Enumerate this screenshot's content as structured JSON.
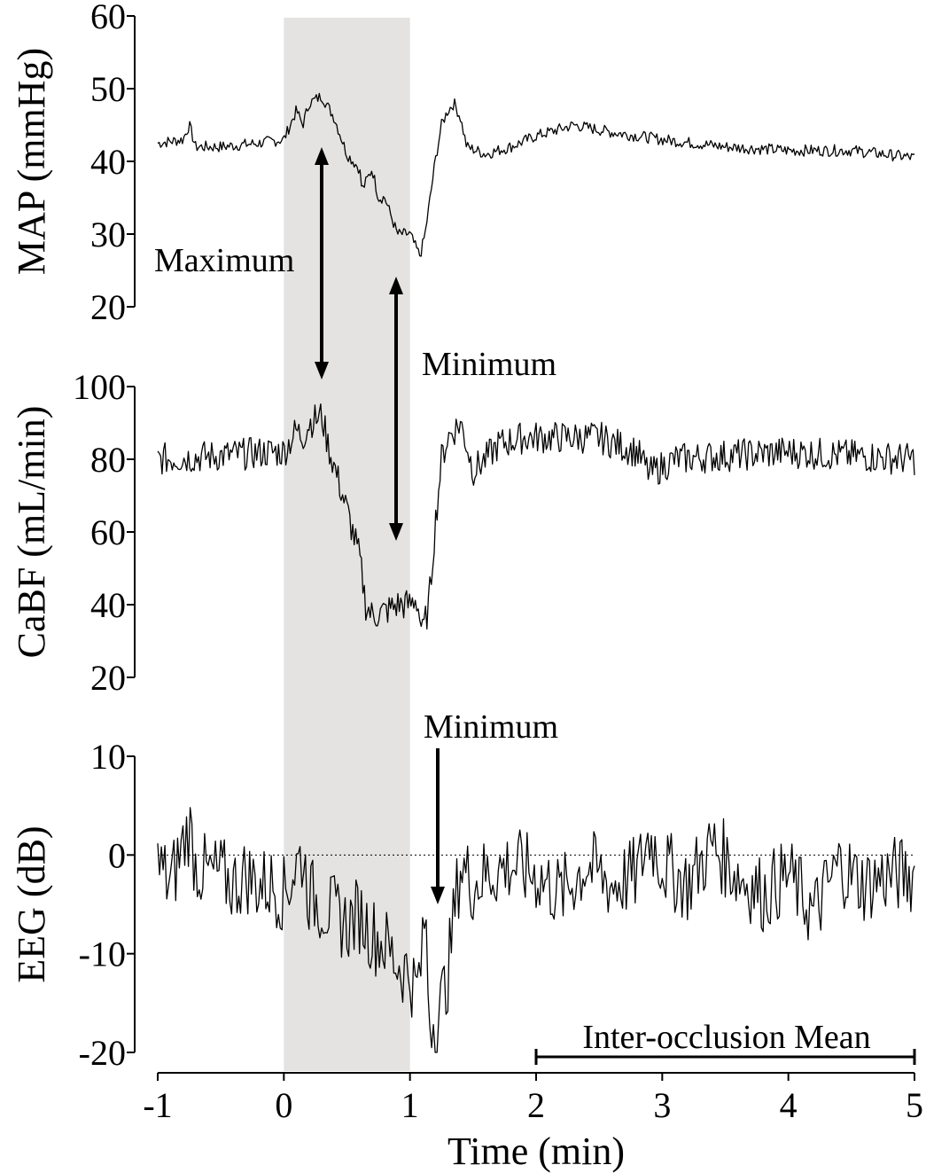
{
  "chart_data": {
    "type": "line",
    "shaded_interval": {
      "x": [
        0,
        1
      ],
      "color": "#e4e3e1"
    },
    "xlabel": "Time (min)",
    "xticks": [
      "-1",
      "0",
      "1",
      "2",
      "3",
      "4",
      "5"
    ],
    "xlim": [
      -1,
      5
    ],
    "panels": [
      {
        "ylabel": "MAP (mmHg)",
        "ylim": [
          20,
          60
        ],
        "yticks": [
          "20",
          "30",
          "40",
          "50",
          "60"
        ],
        "x": [
          -1,
          -0.8,
          -0.75,
          -0.7,
          -0.5,
          -0.2,
          0,
          0.1,
          0.15,
          0.2,
          0.3,
          0.4,
          0.5,
          0.6,
          0.62,
          0.7,
          0.75,
          0.8,
          0.9,
          1,
          1.05,
          1.08,
          1.12,
          1.2,
          1.25,
          1.3,
          1.35,
          1.4,
          1.45,
          1.6,
          1.8,
          2,
          2.3,
          2.6,
          3,
          3.5,
          4,
          4.5,
          5
        ],
        "y": [
          42.5,
          43,
          45,
          42,
          42,
          42.5,
          43,
          47,
          45,
          48,
          49,
          46,
          41,
          39,
          36,
          39,
          35,
          35,
          30,
          30,
          28,
          27,
          30,
          40,
          45,
          47,
          48,
          46,
          42,
          41,
          42,
          43.5,
          45,
          44,
          43,
          42,
          41.5,
          41.5,
          40.5
        ]
      },
      {
        "ylabel": "CaBF (mL/min)",
        "ylim": [
          20,
          100
        ],
        "yticks": [
          "20",
          "40",
          "60",
          "80",
          "100"
        ],
        "x": [
          -1,
          -0.5,
          -0.1,
          0,
          0.1,
          0.15,
          0.2,
          0.3,
          0.35,
          0.4,
          0.5,
          0.6,
          0.65,
          0.7,
          0.8,
          0.9,
          1,
          1.05,
          1.1,
          1.15,
          1.2,
          1.25,
          1.3,
          1.35,
          1.4,
          1.45,
          1.5,
          1.6,
          1.7,
          1.9,
          2.2,
          2.5,
          2.8,
          2.9,
          3.1,
          3.5,
          4,
          4.5,
          5
        ],
        "y": [
          80,
          81,
          82,
          82,
          88,
          86,
          90,
          92,
          84,
          78,
          66,
          53,
          40,
          37,
          38,
          40,
          40,
          42,
          32,
          40,
          62,
          80,
          86,
          88,
          90,
          84,
          77,
          80,
          84,
          86,
          86,
          86,
          82,
          76,
          80,
          81,
          82,
          81,
          80
        ]
      },
      {
        "ylabel": "EEG (dB)",
        "ylim": [
          -20,
          10
        ],
        "yticks": [
          "-20",
          "-10",
          "0",
          "10"
        ],
        "zero_line": true,
        "x": [
          -1,
          -0.9,
          -0.8,
          -0.75,
          -0.7,
          -0.6,
          -0.5,
          -0.4,
          -0.3,
          -0.2,
          -0.1,
          0,
          0.1,
          0.15,
          0.2,
          0.3,
          0.4,
          0.5,
          0.6,
          0.7,
          0.8,
          0.9,
          1,
          1.05,
          1.1,
          1.12,
          1.15,
          1.2,
          1.25,
          1.3,
          1.35,
          1.4,
          1.5,
          1.6,
          1.8,
          2,
          2.2,
          2.4,
          2.6,
          2.8,
          2.9,
          3,
          3.2,
          3.4,
          3.6,
          3.8,
          4,
          4.2,
          4.4,
          4.6,
          4.8,
          5
        ],
        "y": [
          -1,
          -3,
          1,
          3,
          -1,
          -2,
          -2,
          -3,
          -2,
          -3,
          -3,
          -4,
          -1,
          0,
          -4,
          -5,
          -6,
          -7,
          -6,
          -8,
          -9,
          -11,
          -12,
          -14,
          -10,
          -5,
          -16,
          -17,
          -15,
          -12,
          -6,
          -1,
          -3,
          -2,
          -1,
          -2,
          -4,
          -1,
          -3,
          -2,
          2,
          -1,
          -3,
          1,
          -2,
          -4,
          -2,
          -6,
          -1,
          -3,
          -2,
          -2
        ]
      }
    ],
    "annotations": [
      "Maximum",
      "Minimum",
      "Minimum",
      "Inter-occlusion Mean"
    ],
    "bracket_interval": [
      2,
      5
    ]
  }
}
